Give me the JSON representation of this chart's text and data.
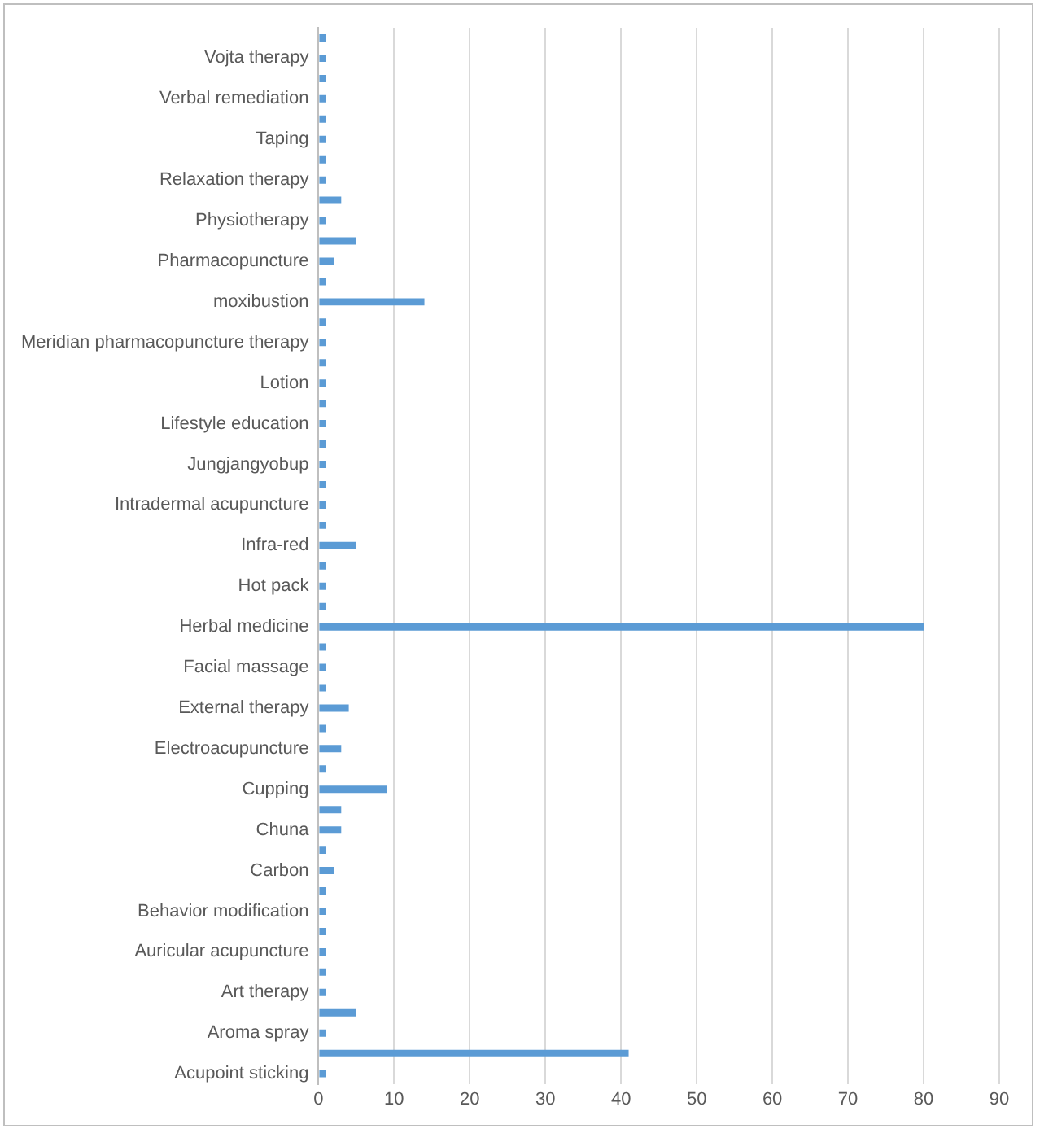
{
  "chart_data": {
    "type": "bar",
    "orientation": "horizontal",
    "categories": [
      null,
      "Vojta therapy",
      null,
      "Verbal remediation",
      null,
      "Taping",
      null,
      "Relaxation therapy",
      null,
      "Physiotherapy",
      null,
      "Pharmacopuncture",
      null,
      "moxibustion",
      null,
      "Meridian pharmacopuncture therapy",
      null,
      "Lotion",
      null,
      "Lifestyle education",
      null,
      "Jungjangyobup",
      null,
      "Intradermal acupuncture",
      null,
      "Infra-red",
      null,
      "Hot pack",
      null,
      "Herbal medicine",
      null,
      "Facial massage",
      null,
      "External therapy",
      null,
      "Electroacupuncture",
      null,
      "Cupping",
      null,
      "Chuna",
      null,
      "Carbon",
      null,
      "Behavior modification",
      null,
      "Auricular acupuncture",
      null,
      "Art therapy",
      null,
      "Aroma spray",
      null,
      "Acupoint sticking"
    ],
    "values": [
      1,
      1,
      1,
      1,
      1,
      1,
      1,
      1,
      3,
      1,
      5,
      2,
      1,
      14,
      1,
      1,
      1,
      1,
      1,
      1,
      1,
      1,
      1,
      1,
      1,
      5,
      1,
      1,
      1,
      80,
      1,
      1,
      1,
      4,
      1,
      3,
      1,
      9,
      3,
      3,
      1,
      2,
      1,
      1,
      1,
      1,
      1,
      1,
      5,
      1,
      41,
      1
    ],
    "color": "#5b9bd5",
    "xlim": [
      0,
      90
    ],
    "xticks": [
      0,
      10,
      20,
      30,
      40,
      50,
      60,
      70,
      80,
      90
    ],
    "grid": "x"
  }
}
